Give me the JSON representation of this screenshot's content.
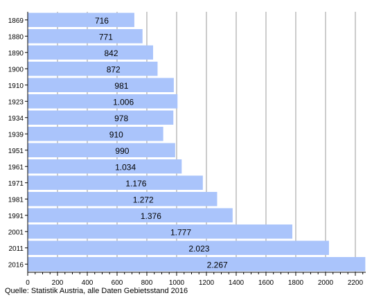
{
  "chart_data": {
    "type": "bar",
    "orientation": "horizontal",
    "categories": [
      "1869",
      "1880",
      "1890",
      "1900",
      "1910",
      "1923",
      "1934",
      "1939",
      "1951",
      "1961",
      "1971",
      "1981",
      "1991",
      "2001",
      "2011",
      "2016"
    ],
    "values": [
      716,
      771,
      842,
      872,
      981,
      1006,
      978,
      910,
      990,
      1034,
      1176,
      1272,
      1376,
      1777,
      2023,
      2267
    ],
    "value_labels": [
      "716",
      "771",
      "842",
      "872",
      "981",
      "1.006",
      "978",
      "910",
      "990",
      "1.034",
      "1.176",
      "1.272",
      "1.376",
      "1.777",
      "2.023",
      "2.267"
    ],
    "x_ticks": [
      "0",
      "200",
      "400",
      "600",
      "800",
      "1000",
      "1200",
      "1400",
      "1600",
      "1800",
      "2000",
      "2200"
    ],
    "xlim": [
      0,
      2270
    ],
    "grid": "vertical",
    "title": "",
    "xlabel": "",
    "ylabel": "",
    "colors": {
      "bar": "#aac4fb",
      "grid": "#999999",
      "axis": "#000000"
    }
  },
  "source": "Quelle: Statistik Austria, alle Daten Gebietsstand 2016"
}
